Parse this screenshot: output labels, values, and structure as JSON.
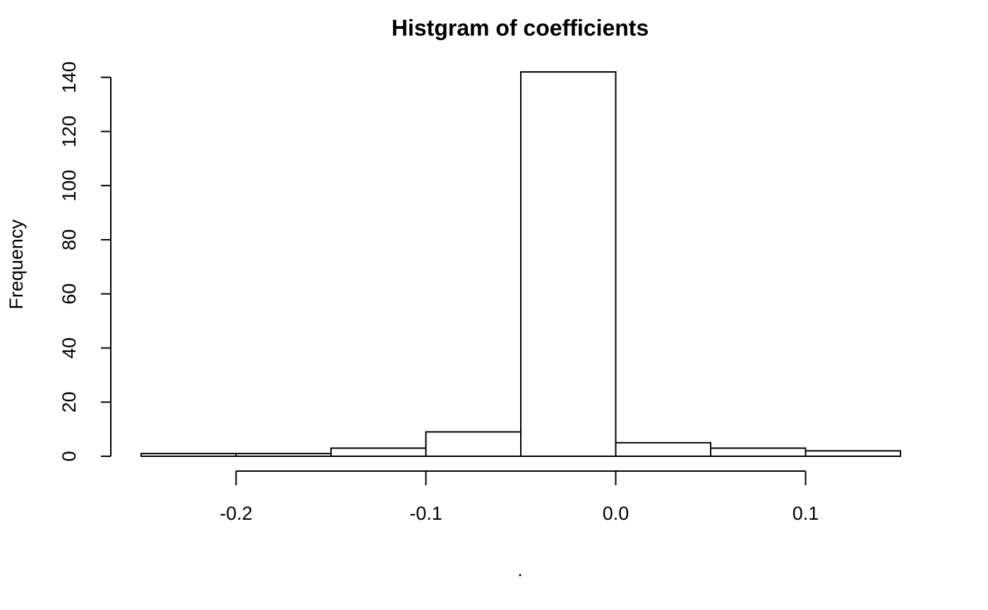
{
  "chart_data": {
    "type": "histogram",
    "title": "Histgram of coefficients",
    "x_label": ".",
    "y_label": "Frequency",
    "bins": [
      -0.25,
      -0.2,
      -0.15,
      -0.1,
      -0.05,
      0,
      0.05,
      0.1,
      0.15
    ],
    "counts": [
      1,
      1,
      3,
      9,
      142,
      5,
      3,
      2
    ],
    "color": "#ffffff",
    "xlim": [
      -0.25,
      0.15
    ],
    "xticks": [
      -0.2,
      -0.1,
      {
        "value": 0,
        "label": "0.0"
      },
      0.1
    ],
    "ylim": [
      0,
      142
    ],
    "yticks": [
      0,
      20,
      40,
      60,
      80,
      100,
      120,
      140
    ]
  }
}
